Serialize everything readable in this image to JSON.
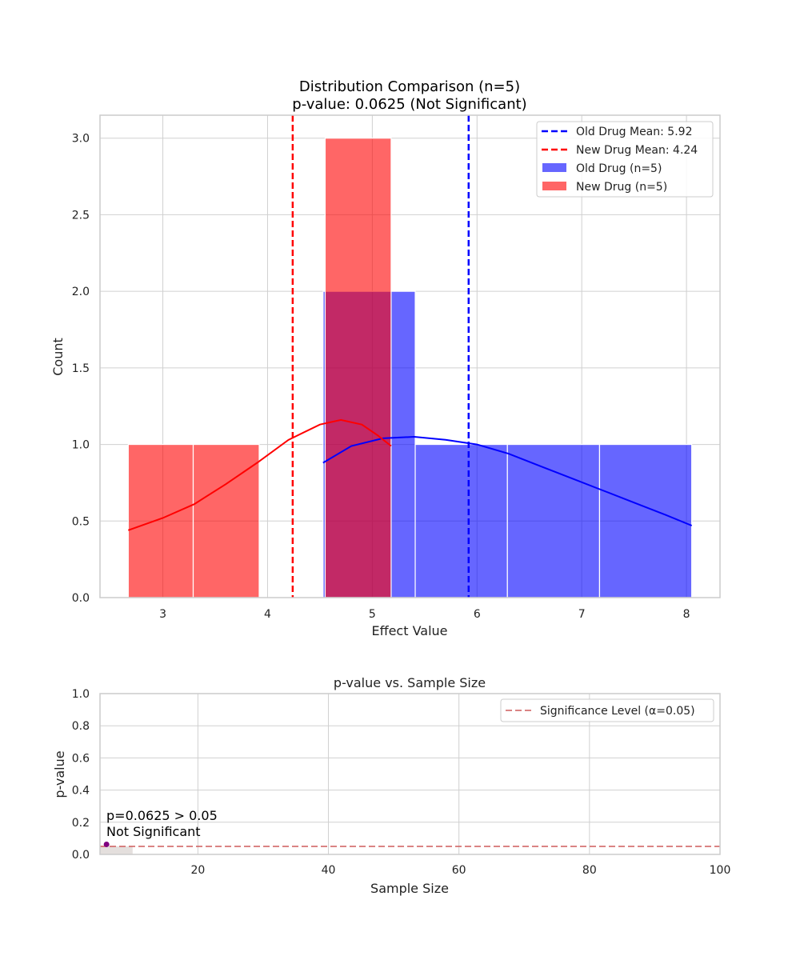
{
  "chart_data": [
    {
      "type": "histogram",
      "title_line1": "Distribution Comparison (n=5)",
      "title_line2": "p-value: 0.0625 (Not Significant)",
      "xlabel": "Effect Value",
      "ylabel": "Count",
      "xlim": [
        2.4,
        8.32
      ],
      "ylim": [
        0,
        3.15
      ],
      "xticks": [
        3,
        4,
        5,
        6,
        7,
        8
      ],
      "yticks": [
        0.0,
        0.5,
        1.0,
        1.5,
        2.0,
        2.5,
        3.0
      ],
      "xtick_labels": [
        "3",
        "4",
        "5",
        "6",
        "7",
        "8"
      ],
      "ytick_labels": [
        "0.0",
        "0.5",
        "1.0",
        "1.5",
        "2.0",
        "2.5",
        "3.0"
      ],
      "grid": true,
      "legend_position": "top-right",
      "series": [
        {
          "name": "Old Drug (n=5)",
          "color": "#0000ff",
          "bins": [
            {
              "x0": 4.53,
              "x1": 5.41,
              "count": 2
            },
            {
              "x0": 5.41,
              "x1": 6.29,
              "count": 1
            },
            {
              "x0": 6.29,
              "x1": 7.17,
              "count": 1
            },
            {
              "x0": 7.17,
              "x1": 8.05,
              "count": 1
            }
          ],
          "kde": [
            [
              4.53,
              0.88
            ],
            [
              4.8,
              0.99
            ],
            [
              5.1,
              1.04
            ],
            [
              5.4,
              1.05
            ],
            [
              5.7,
              1.03
            ],
            [
              6.0,
              1.0
            ],
            [
              6.3,
              0.94
            ],
            [
              6.6,
              0.86
            ],
            [
              6.9,
              0.78
            ],
            [
              7.2,
              0.7
            ],
            [
              7.5,
              0.62
            ],
            [
              7.8,
              0.54
            ],
            [
              8.05,
              0.47
            ]
          ]
        },
        {
          "name": "New Drug (n=5)",
          "color": "#ff0000",
          "bins": [
            {
              "x0": 2.67,
              "x1": 3.29,
              "count": 1
            },
            {
              "x0": 3.29,
              "x1": 3.92,
              "count": 1
            },
            {
              "x0": 4.55,
              "x1": 5.18,
              "count": 3
            }
          ],
          "kde": [
            [
              2.67,
              0.44
            ],
            [
              3.0,
              0.52
            ],
            [
              3.3,
              0.61
            ],
            [
              3.6,
              0.74
            ],
            [
              3.9,
              0.88
            ],
            [
              4.2,
              1.03
            ],
            [
              4.5,
              1.13
            ],
            [
              4.7,
              1.16
            ],
            [
              4.9,
              1.13
            ],
            [
              5.05,
              1.06
            ],
            [
              5.18,
              0.99
            ]
          ]
        }
      ],
      "mean_lines": [
        {
          "label": "Old Drug Mean: 5.92",
          "value": 5.92,
          "color": "#0000ff"
        },
        {
          "label": "New Drug Mean: 4.24",
          "value": 4.24,
          "color": "#ff0000"
        }
      ]
    },
    {
      "type": "line",
      "title": "p-value vs. Sample Size",
      "xlabel": "Sample Size",
      "ylabel": "p-value",
      "xlim": [
        5,
        100
      ],
      "ylim": [
        0,
        1
      ],
      "xticks": [
        20,
        40,
        60,
        80,
        100
      ],
      "yticks": [
        0.0,
        0.2,
        0.4,
        0.6,
        0.8,
        1.0
      ],
      "xtick_labels": [
        "20",
        "40",
        "60",
        "80",
        "100"
      ],
      "ytick_labels": [
        "0.0",
        "0.2",
        "0.4",
        "0.6",
        "0.8",
        "1.0"
      ],
      "grid": true,
      "legend_position": "top-right",
      "points": [
        {
          "x": 6,
          "y": 0.0625
        }
      ],
      "point_color": "#800080",
      "threshold": {
        "label": "Significance Level (α=0.05)",
        "value": 0.05,
        "color": "#cd5c5c"
      },
      "shaded_region": {
        "x0": 5,
        "x1": 10,
        "y0": 0,
        "y1": 0.05,
        "color": "#d9d2cf"
      },
      "annotation_line1": "p=0.0625 > 0.05",
      "annotation_line2": "Not Significant"
    }
  ]
}
